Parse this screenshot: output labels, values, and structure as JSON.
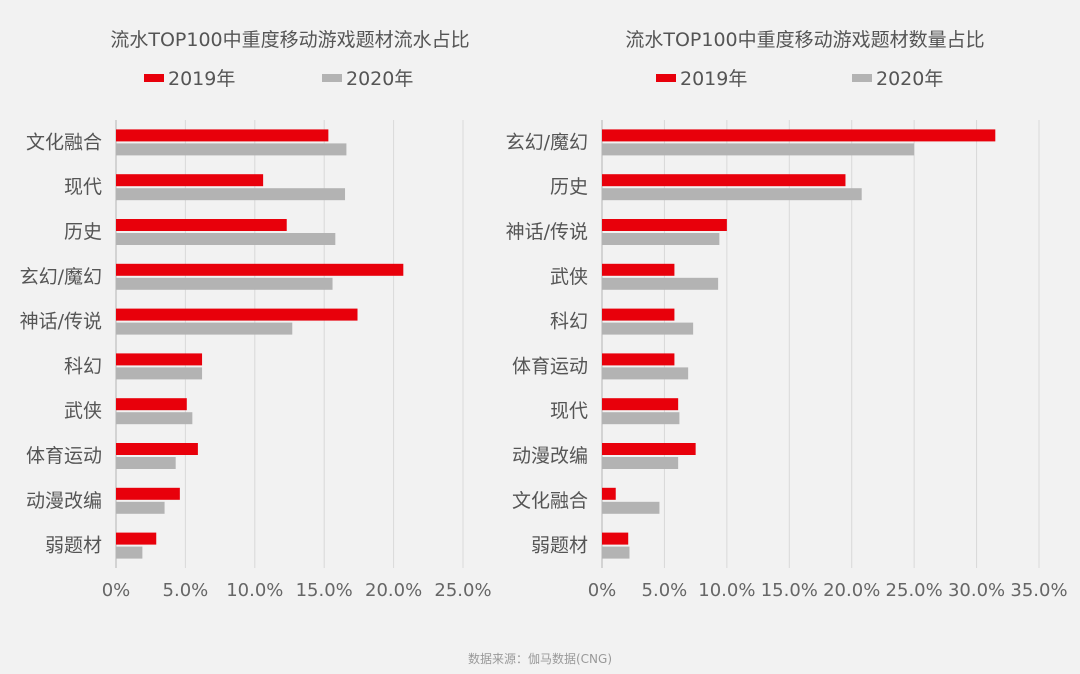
{
  "footer": "数据来源：伽马数据(CNG)",
  "colors": {
    "series_2019": "#e8000b",
    "series_2020": "#b3b3b3",
    "grid": "#d9d9d9",
    "axis": "#bfbfbf"
  },
  "chart_data": [
    {
      "type": "bar",
      "orientation": "horizontal",
      "title": "流水TOP100中重度移动游戏题材流水占比",
      "categories": [
        "文化融合",
        "现代",
        "历史",
        "玄幻/魔幻",
        "神话/传说",
        "科幻",
        "武侠",
        "体育运动",
        "动漫改编",
        "弱题材"
      ],
      "series": [
        {
          "name": "2019年",
          "values": [
            15.3,
            10.6,
            12.3,
            20.7,
            17.4,
            6.2,
            5.1,
            5.9,
            4.6,
            2.9
          ]
        },
        {
          "name": "2020年",
          "values": [
            16.6,
            16.5,
            15.8,
            15.6,
            12.7,
            6.2,
            5.5,
            4.3,
            3.5,
            1.9
          ]
        }
      ],
      "xlim": [
        0,
        25
      ],
      "xticks": [
        "0%",
        "5.0%",
        "10.0%",
        "15.0%",
        "20.0%",
        "25.0%"
      ],
      "grid": true,
      "legend": "top"
    },
    {
      "type": "bar",
      "orientation": "horizontal",
      "title": "流水TOP100中重度移动游戏题材数量占比",
      "categories": [
        "玄幻/魔幻",
        "历史",
        "神话/传说",
        "武侠",
        "科幻",
        "体育运动",
        "现代",
        "动漫改编",
        "文化融合",
        "弱题材"
      ],
      "series": [
        {
          "name": "2019年",
          "values": [
            31.5,
            19.5,
            10.0,
            5.8,
            5.8,
            5.8,
            6.1,
            7.5,
            1.1,
            2.1
          ]
        },
        {
          "name": "2020年",
          "values": [
            25.0,
            20.8,
            9.4,
            9.3,
            7.3,
            6.9,
            6.2,
            6.1,
            4.6,
            2.2
          ]
        }
      ],
      "xlim": [
        0,
        35
      ],
      "xticks": [
        "0%",
        "5.0%",
        "10.0%",
        "15.0%",
        "20.0%",
        "25.0%",
        "30.0%",
        "35.0%"
      ],
      "grid": true,
      "legend": "top"
    }
  ]
}
